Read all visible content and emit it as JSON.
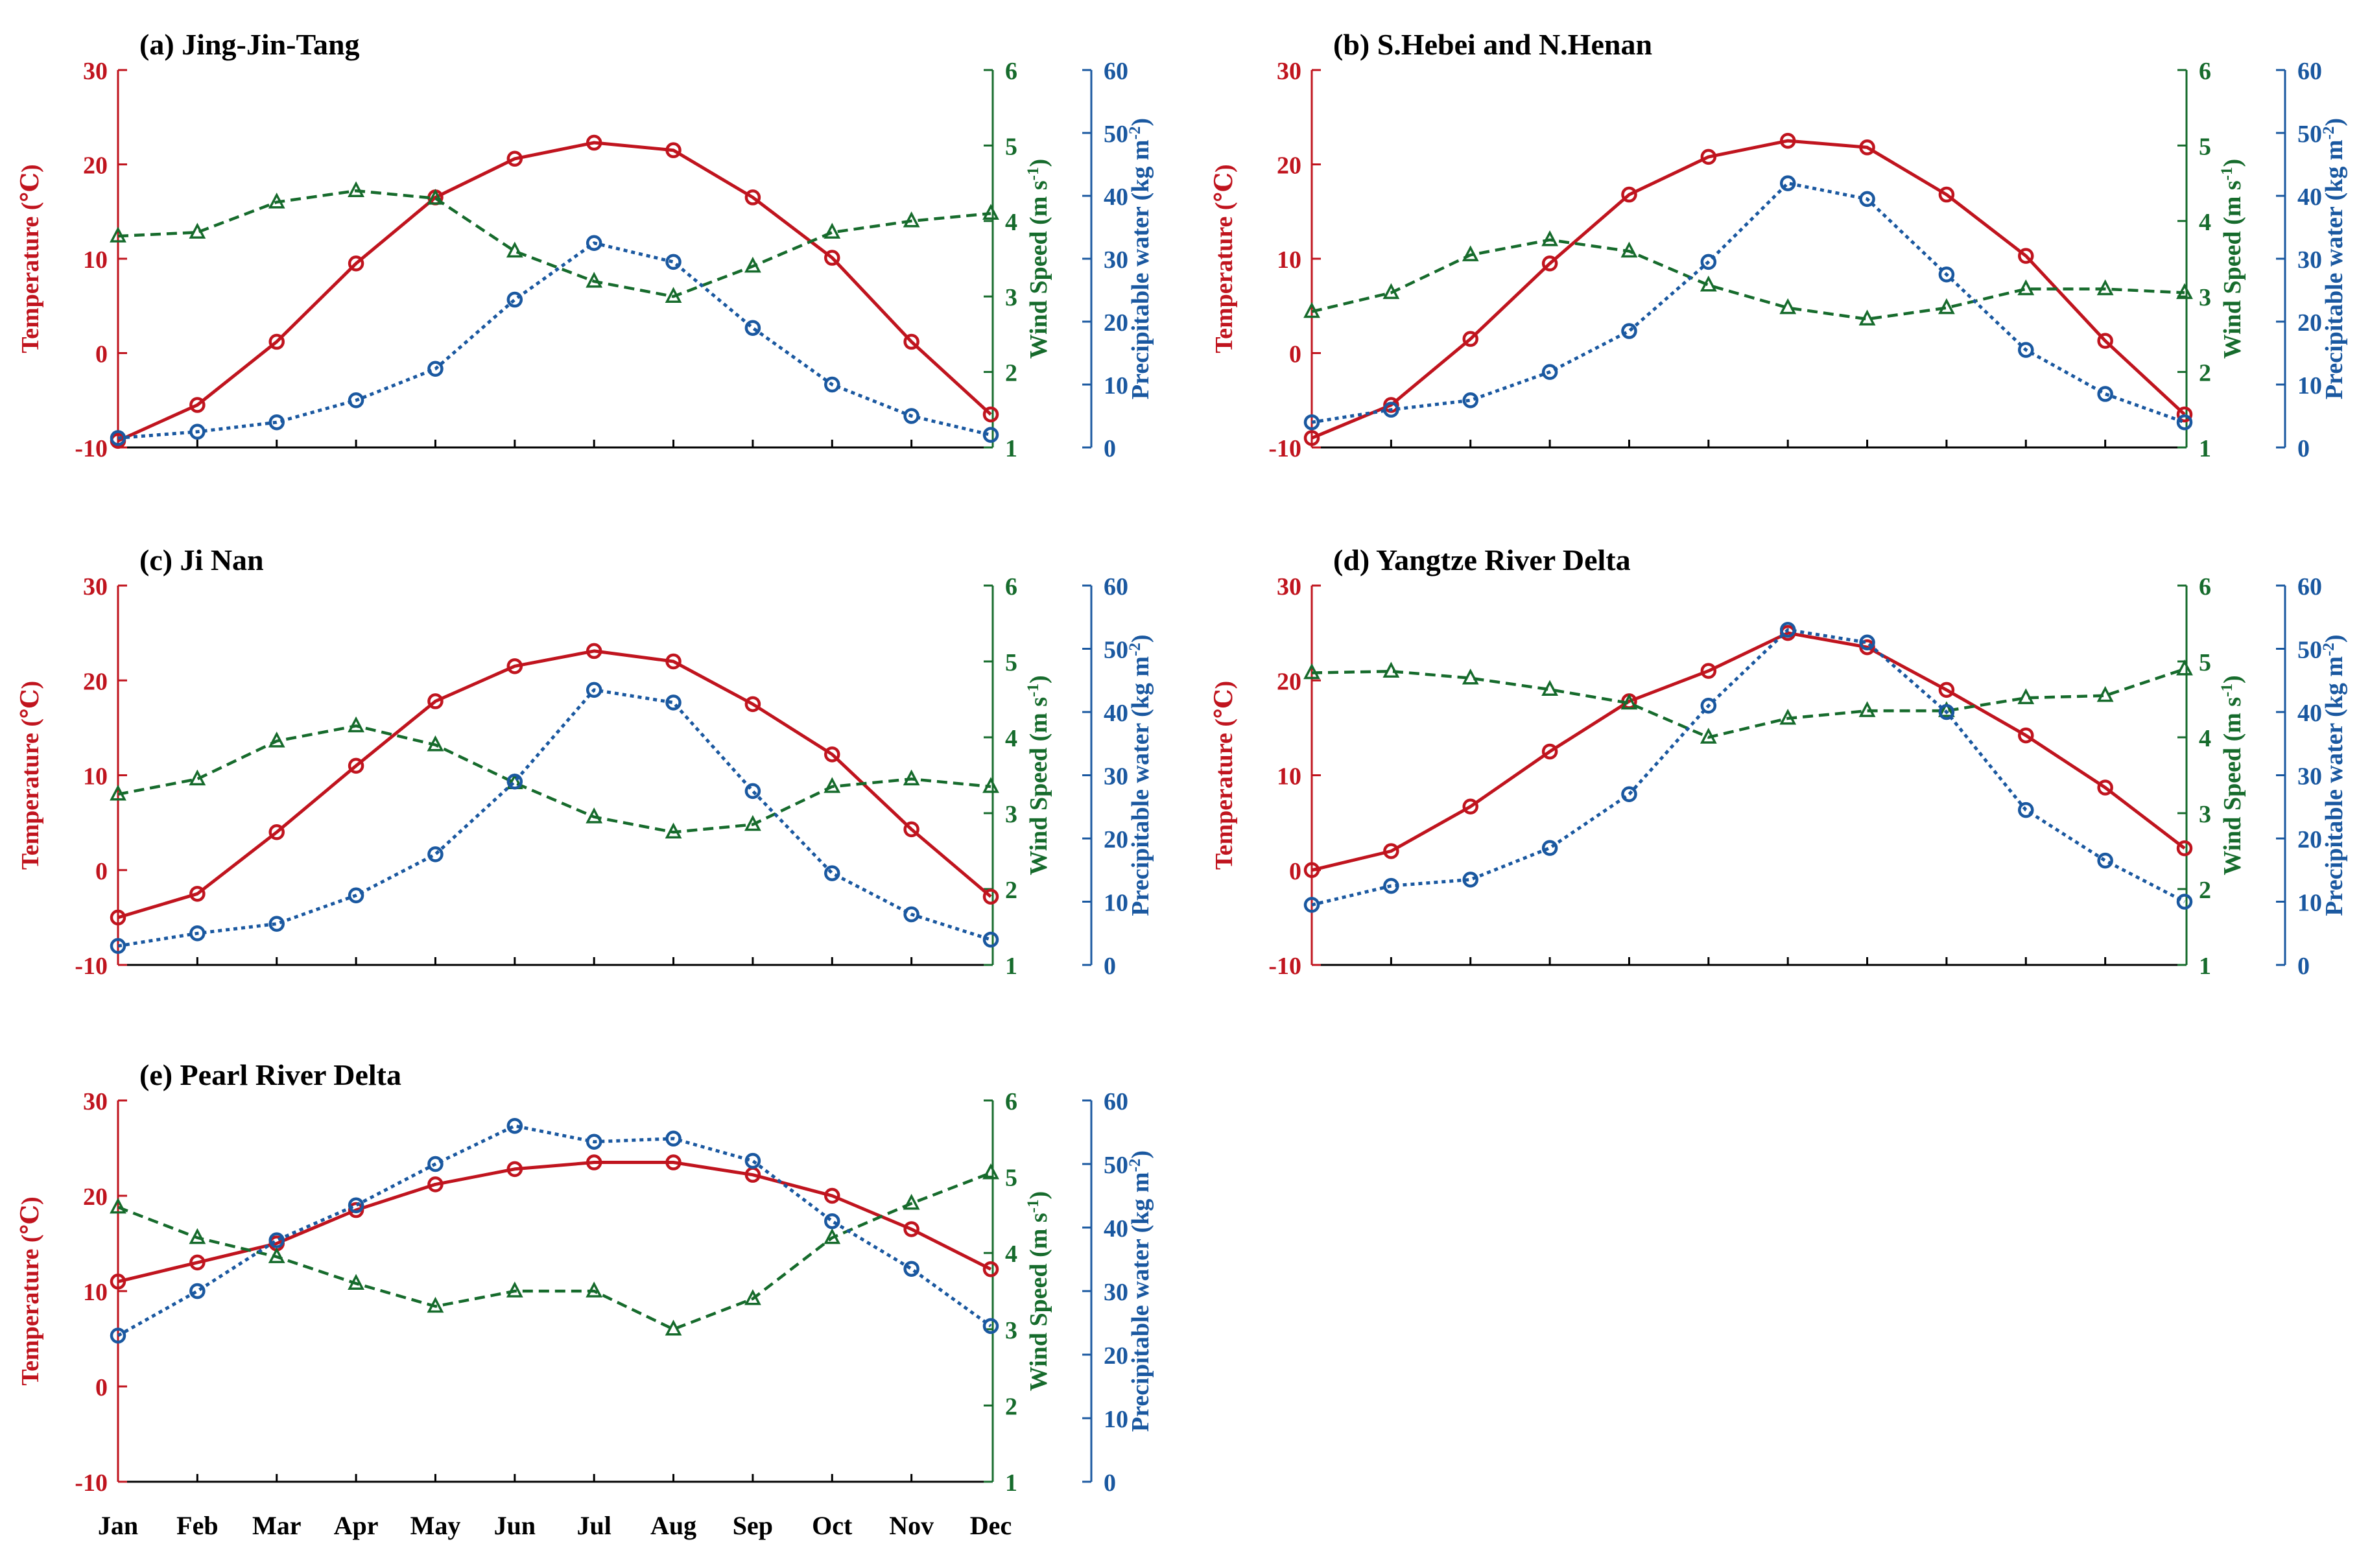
{
  "colors": {
    "temperature": "#c0141e",
    "wind": "#166b2c",
    "water": "#1a58a0",
    "axis": "#000000"
  },
  "chart_data": [
    {
      "type": "line",
      "title": "(a) Jing-Jin-Tang",
      "xlabel": "",
      "categories": [
        "Jan",
        "Feb",
        "Mar",
        "Apr",
        "May",
        "Jun",
        "Jul",
        "Aug",
        "Sep",
        "Oct",
        "Nov",
        "Dec"
      ],
      "axes": {
        "temperature": {
          "label": "Temperature (℃)",
          "range": [
            -10,
            30
          ],
          "ticks": [
            -10,
            0,
            10,
            20,
            30
          ]
        },
        "wind": {
          "label_prefix": "Wind Speed (m s",
          "label_sup": "-1",
          "label_suffix": ")",
          "range": [
            1,
            6
          ],
          "ticks": [
            1,
            2,
            3,
            4,
            5,
            6
          ]
        },
        "water": {
          "label_prefix": "Precipitable water (kg m",
          "label_sup": "-2",
          "label_suffix": ")",
          "range": [
            0,
            60
          ],
          "ticks": [
            0,
            10,
            20,
            30,
            40,
            50,
            60
          ]
        }
      },
      "series": [
        {
          "name": "Temperature",
          "axis": "temperature",
          "marker": "circle",
          "style": "solid",
          "values": [
            -9.3,
            -5.5,
            1.2,
            9.5,
            16.5,
            20.6,
            22.3,
            21.5,
            16.5,
            10.1,
            1.2,
            -6.5
          ]
        },
        {
          "name": "Wind Speed",
          "axis": "wind",
          "marker": "triangle",
          "style": "dashed",
          "values": [
            3.8,
            3.85,
            4.25,
            4.4,
            4.3,
            3.6,
            3.2,
            3.0,
            3.4,
            3.85,
            4.0,
            4.1
          ]
        },
        {
          "name": "Precipitable water",
          "axis": "water",
          "marker": "circle",
          "style": "dotted",
          "values": [
            1.5,
            2.5,
            4,
            7.5,
            12.5,
            23.5,
            32.5,
            29.5,
            19,
            10,
            5,
            2
          ]
        }
      ]
    },
    {
      "type": "line",
      "title": "(b) S.Hebei and N.Henan",
      "xlabel": "",
      "categories": [
        "Jan",
        "Feb",
        "Mar",
        "Apr",
        "May",
        "Jun",
        "Jul",
        "Aug",
        "Sep",
        "Oct",
        "Nov",
        "Dec"
      ],
      "axes": {
        "temperature": {
          "label": "Temperature (℃)",
          "range": [
            -10,
            30
          ],
          "ticks": [
            -10,
            0,
            10,
            20,
            30
          ]
        },
        "wind": {
          "label_prefix": "Wind Speed (m s",
          "label_sup": "-1",
          "label_suffix": ")",
          "range": [
            1,
            6
          ],
          "ticks": [
            1,
            2,
            3,
            4,
            5,
            6
          ]
        },
        "water": {
          "label_prefix": "Precipitable water (kg m",
          "label_sup": "-2",
          "label_suffix": ")",
          "range": [
            0,
            60
          ],
          "ticks": [
            0,
            10,
            20,
            30,
            40,
            50,
            60
          ]
        }
      },
      "series": [
        {
          "name": "Temperature",
          "axis": "temperature",
          "marker": "circle",
          "style": "solid",
          "values": [
            -9.0,
            -5.5,
            1.5,
            9.5,
            16.8,
            20.8,
            22.5,
            21.8,
            16.8,
            10.3,
            1.3,
            -6.5
          ]
        },
        {
          "name": "Wind Speed",
          "axis": "wind",
          "marker": "triangle",
          "style": "dashed",
          "values": [
            2.8,
            3.05,
            3.55,
            3.75,
            3.6,
            3.15,
            2.85,
            2.7,
            2.85,
            3.1,
            3.1,
            3.05
          ]
        },
        {
          "name": "Precipitable water",
          "axis": "water",
          "marker": "circle",
          "style": "dotted",
          "values": [
            4,
            6,
            7.5,
            12,
            18.5,
            29.5,
            42,
            39.5,
            27.5,
            15.5,
            8.5,
            4
          ]
        }
      ]
    },
    {
      "type": "line",
      "title": "(c) Ji Nan",
      "xlabel": "",
      "categories": [
        "Jan",
        "Feb",
        "Mar",
        "Apr",
        "May",
        "Jun",
        "Jul",
        "Aug",
        "Sep",
        "Oct",
        "Nov",
        "Dec"
      ],
      "axes": {
        "temperature": {
          "label": "Temperature (℃)",
          "range": [
            -10,
            30
          ],
          "ticks": [
            -10,
            0,
            10,
            20,
            30
          ]
        },
        "wind": {
          "label_prefix": "Wind Speed (m s",
          "label_sup": "-1",
          "label_suffix": ")",
          "range": [
            1,
            6
          ],
          "ticks": [
            1,
            2,
            3,
            4,
            5,
            6
          ]
        },
        "water": {
          "label_prefix": "Precipitable water (kg m",
          "label_sup": "-2",
          "label_suffix": ")",
          "range": [
            0,
            60
          ],
          "ticks": [
            0,
            10,
            20,
            30,
            40,
            50,
            60
          ]
        }
      },
      "series": [
        {
          "name": "Temperature",
          "axis": "temperature",
          "marker": "circle",
          "style": "solid",
          "values": [
            -5.0,
            -2.5,
            4.0,
            11.0,
            17.8,
            21.5,
            23.1,
            22.0,
            17.5,
            12.2,
            4.3,
            -2.8
          ]
        },
        {
          "name": "Wind Speed",
          "axis": "wind",
          "marker": "triangle",
          "style": "dashed",
          "values": [
            3.25,
            3.45,
            3.95,
            4.15,
            3.9,
            3.4,
            2.95,
            2.75,
            2.85,
            3.35,
            3.45,
            3.35
          ]
        },
        {
          "name": "Precipitable water",
          "axis": "water",
          "marker": "circle",
          "style": "dotted",
          "values": [
            3,
            5,
            6.5,
            11,
            17.5,
            29,
            43.5,
            41.5,
            27.5,
            14.5,
            8,
            4
          ]
        }
      ]
    },
    {
      "type": "line",
      "title": "(d) Yangtze River Delta",
      "xlabel": "",
      "categories": [
        "Jan",
        "Feb",
        "Mar",
        "Apr",
        "May",
        "Jun",
        "Jul",
        "Aug",
        "Sep",
        "Oct",
        "Nov",
        "Dec"
      ],
      "axes": {
        "temperature": {
          "label": "Temperature (℃)",
          "range": [
            -10,
            30
          ],
          "ticks": [
            -10,
            0,
            10,
            20,
            30
          ]
        },
        "wind": {
          "label_prefix": "Wind Speed (m s",
          "label_sup": "-1",
          "label_suffix": ")",
          "range": [
            1,
            6
          ],
          "ticks": [
            1,
            2,
            3,
            4,
            5,
            6
          ]
        },
        "water": {
          "label_prefix": "Precipitable water (kg m",
          "label_sup": "-2",
          "label_suffix": ")",
          "range": [
            0,
            60
          ],
          "ticks": [
            0,
            10,
            20,
            30,
            40,
            50,
            60
          ]
        }
      },
      "series": [
        {
          "name": "Temperature",
          "axis": "temperature",
          "marker": "circle",
          "style": "solid",
          "values": [
            0.0,
            2.0,
            6.7,
            12.5,
            17.8,
            21.0,
            25.0,
            23.5,
            19.0,
            14.2,
            8.7,
            2.3
          ]
        },
        {
          "name": "Wind Speed",
          "axis": "wind",
          "marker": "triangle",
          "style": "dashed",
          "values": [
            4.85,
            4.87,
            4.78,
            4.63,
            4.45,
            4.0,
            4.25,
            4.35,
            4.35,
            4.52,
            4.55,
            4.9
          ]
        },
        {
          "name": "Precipitable water",
          "axis": "water",
          "marker": "circle",
          "style": "dotted",
          "values": [
            9.5,
            12.5,
            13.5,
            18.5,
            27,
            41,
            53,
            51,
            40,
            24.5,
            16.5,
            10
          ]
        }
      ]
    },
    {
      "type": "line",
      "title": "(e) Pearl River Delta",
      "xlabel": "",
      "categories": [
        "Jan",
        "Feb",
        "Mar",
        "Apr",
        "May",
        "Jun",
        "Jul",
        "Aug",
        "Sep",
        "Oct",
        "Nov",
        "Dec"
      ],
      "axes": {
        "temperature": {
          "label": "Temperature (℃)",
          "range": [
            -10,
            30
          ],
          "ticks": [
            -10,
            0,
            10,
            20,
            30
          ]
        },
        "wind": {
          "label_prefix": "Wind Speed (m s",
          "label_sup": "-1",
          "label_suffix": ")",
          "range": [
            1,
            6
          ],
          "ticks": [
            1,
            2,
            3,
            4,
            5,
            6
          ]
        },
        "water": {
          "label_prefix": "Precipitable water (kg m",
          "label_sup": "-2",
          "label_suffix": ")",
          "range": [
            0,
            60
          ],
          "ticks": [
            0,
            10,
            20,
            30,
            40,
            50,
            60
          ]
        }
      },
      "series": [
        {
          "name": "Temperature",
          "axis": "temperature",
          "marker": "circle",
          "style": "solid",
          "values": [
            11.0,
            13.0,
            15.0,
            18.5,
            21.2,
            22.8,
            23.5,
            23.5,
            22.2,
            20.0,
            16.5,
            12.3
          ]
        },
        {
          "name": "Wind Speed",
          "axis": "wind",
          "marker": "triangle",
          "style": "dashed",
          "values": [
            4.6,
            4.2,
            3.95,
            3.6,
            3.3,
            3.5,
            3.5,
            3.0,
            3.4,
            4.2,
            4.65,
            5.05
          ]
        },
        {
          "name": "Precipitable water",
          "axis": "water",
          "marker": "circle",
          "style": "dotted",
          "values": [
            23,
            30,
            38,
            43.5,
            50,
            56,
            53.5,
            54,
            50.5,
            41,
            33.5,
            24.5
          ]
        }
      ]
    }
  ]
}
